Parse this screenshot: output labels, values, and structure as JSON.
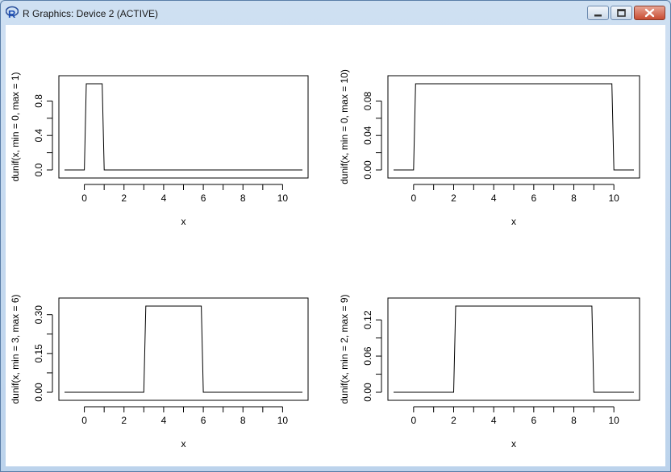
{
  "window": {
    "title": "R Graphics: Device 2 (ACTIVE)",
    "icons": [
      "r-logo-icon",
      "minimize-icon",
      "maximize-icon",
      "close-icon"
    ]
  },
  "chart_data": [
    {
      "type": "line",
      "xlabel": "x",
      "ylabel": "dunif(x, min = 0, max = 1)",
      "xlim": [
        -1,
        11
      ],
      "ylim": [
        0,
        1
      ],
      "xticks": [
        "0",
        "2",
        "4",
        "6",
        "8",
        "10"
      ],
      "yticks": [
        "0.0",
        "0.4",
        "0.8"
      ],
      "ytick_values": [
        0,
        0.4,
        0.8
      ],
      "x": [
        -1,
        0,
        0.1,
        0.9,
        1,
        11
      ],
      "y": [
        0,
        0,
        1,
        1,
        0,
        0
      ],
      "grid": false
    },
    {
      "type": "line",
      "xlabel": "x",
      "ylabel": "dunif(x, min = 0, max = 10)",
      "xlim": [
        -1,
        11
      ],
      "ylim": [
        0,
        0.1
      ],
      "xticks": [
        "0",
        "2",
        "4",
        "6",
        "8",
        "10"
      ],
      "yticks": [
        "0.00",
        "0.04",
        "0.08"
      ],
      "ytick_values": [
        0,
        0.04,
        0.08
      ],
      "x": [
        -1,
        0,
        0.1,
        9.9,
        10,
        11
      ],
      "y": [
        0,
        0,
        0.1,
        0.1,
        0,
        0
      ],
      "grid": false
    },
    {
      "type": "line",
      "xlabel": "x",
      "ylabel": "dunif(x, min = 3, max = 6)",
      "xlim": [
        -1,
        11
      ],
      "ylim": [
        0,
        0.3333
      ],
      "xticks": [
        "0",
        "2",
        "4",
        "6",
        "8",
        "10"
      ],
      "yticks": [
        "0.00",
        "0.15",
        "0.30"
      ],
      "ytick_values": [
        0,
        0.15,
        0.3
      ],
      "x": [
        -1,
        3,
        3.1,
        5.9,
        6,
        11
      ],
      "y": [
        0,
        0,
        0.3333,
        0.3333,
        0,
        0
      ],
      "grid": false
    },
    {
      "type": "line",
      "xlabel": "x",
      "ylabel": "dunif(x, min = 2, max = 9)",
      "xlim": [
        -1,
        11
      ],
      "ylim": [
        0,
        0.1429
      ],
      "xticks": [
        "0",
        "2",
        "4",
        "6",
        "8",
        "10"
      ],
      "yticks": [
        "0.00",
        "0.06",
        "0.12"
      ],
      "ytick_values": [
        0,
        0.06,
        0.12
      ],
      "x": [
        -1,
        2,
        2.1,
        8.9,
        9,
        11
      ],
      "y": [
        0,
        0,
        0.1429,
        0.1429,
        0,
        0
      ],
      "grid": false
    }
  ]
}
